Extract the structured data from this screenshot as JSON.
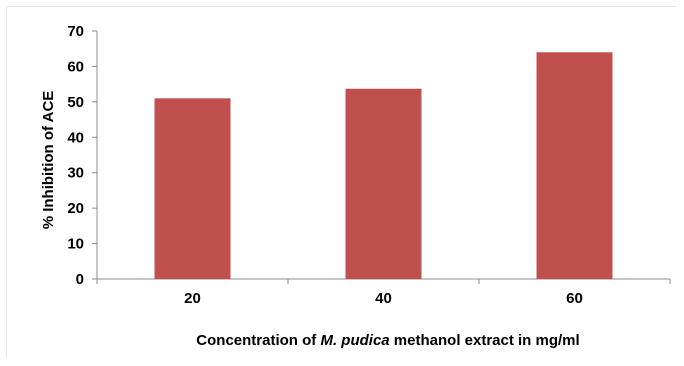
{
  "chart_data": {
    "type": "bar",
    "categories": [
      "20",
      "40",
      "60"
    ],
    "values": [
      51,
      53.7,
      64
    ],
    "title": "",
    "ylabel": "% Inhibition of ACE",
    "xlabel_parts": [
      {
        "text": "Concentration of ",
        "italic": false
      },
      {
        "text": "M. pudica",
        "italic": true
      },
      {
        "text": " methanol extract in mg/ml",
        "italic": false
      }
    ],
    "ylim": [
      0,
      70
    ],
    "yticks": [
      "0",
      "10",
      "20",
      "30",
      "40",
      "50",
      "60",
      "70"
    ],
    "grid": false,
    "legend": "none",
    "bar_color": "#c0504d"
  }
}
